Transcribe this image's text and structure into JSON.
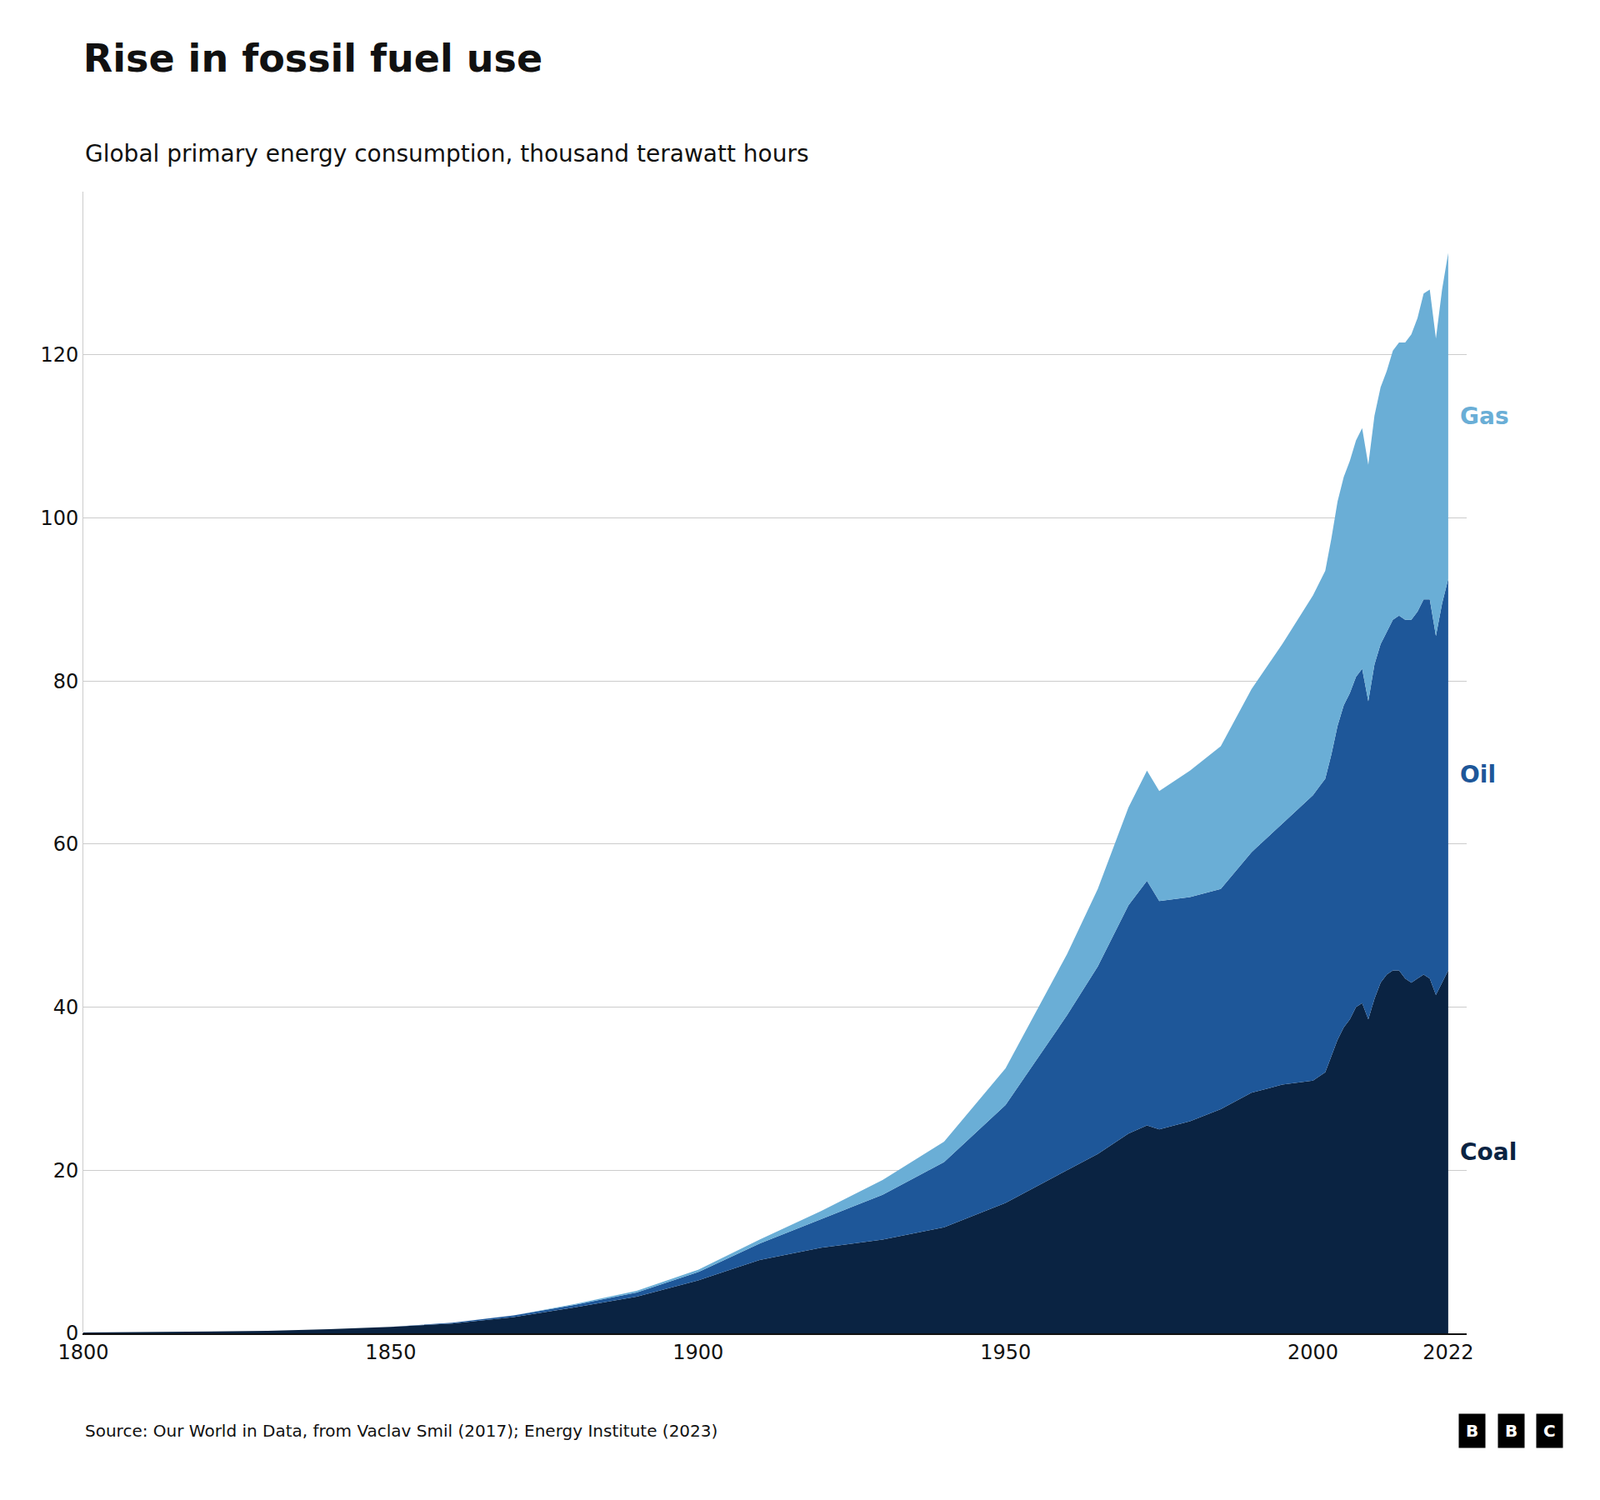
{
  "chart_data": {
    "type": "area",
    "stacked": true,
    "title": "Rise in fossil fuel use",
    "subtitle": "Global primary energy consumption, thousand terawatt hours",
    "source": "Source: Our World in Data, from Vaclav Smil (2017); Energy Institute (2023)",
    "logo": "BBC",
    "x": [
      1800,
      1810,
      1820,
      1830,
      1840,
      1850,
      1860,
      1870,
      1880,
      1890,
      1900,
      1910,
      1920,
      1930,
      1940,
      1950,
      1960,
      1965,
      1970,
      1973,
      1975,
      1980,
      1985,
      1990,
      1995,
      2000,
      2001,
      2002,
      2003,
      2004,
      2005,
      2006,
      2007,
      2008,
      2009,
      2010,
      2011,
      2012,
      2013,
      2014,
      2015,
      2016,
      2017,
      2018,
      2019,
      2020,
      2021,
      2022
    ],
    "series": [
      {
        "name": "Coal",
        "color": "#0a2342",
        "values": [
          0.1,
          0.15,
          0.2,
          0.3,
          0.5,
          0.8,
          1.2,
          2.0,
          3.2,
          4.5,
          6.5,
          9.0,
          10.5,
          11.5,
          13.0,
          16.0,
          20.0,
          22.0,
          24.5,
          25.5,
          25.0,
          26.0,
          27.5,
          29.5,
          30.5,
          31.0,
          31.5,
          32.0,
          34.0,
          36.0,
          37.5,
          38.5,
          40.0,
          40.5,
          38.5,
          41.0,
          43.0,
          44.0,
          44.5,
          44.5,
          43.5,
          43.0,
          43.5,
          44.0,
          43.5,
          41.5,
          43.0,
          44.5
        ]
      },
      {
        "name": "Oil",
        "color": "#1e5799",
        "values": [
          0.0,
          0.0,
          0.0,
          0.0,
          0.0,
          0.0,
          0.1,
          0.2,
          0.3,
          0.5,
          1.0,
          2.0,
          3.5,
          5.5,
          8.0,
          12.0,
          19.0,
          23.0,
          28.0,
          30.0,
          28.0,
          27.5,
          27.0,
          29.5,
          32.0,
          35.0,
          35.5,
          36.0,
          37.0,
          38.5,
          39.5,
          40.0,
          40.5,
          41.0,
          39.0,
          41.0,
          41.5,
          42.0,
          43.0,
          43.5,
          44.0,
          44.5,
          45.0,
          46.0,
          46.5,
          44.0,
          46.5,
          48.0
        ]
      },
      {
        "name": "Gas",
        "color": "#6aaed6",
        "values": [
          0.0,
          0.0,
          0.0,
          0.0,
          0.0,
          0.0,
          0.0,
          0.0,
          0.1,
          0.2,
          0.3,
          0.5,
          1.0,
          1.8,
          2.5,
          4.5,
          7.5,
          9.5,
          12.0,
          13.5,
          13.5,
          15.5,
          17.5,
          20.0,
          22.0,
          24.5,
          25.0,
          25.5,
          26.5,
          27.5,
          28.0,
          28.5,
          29.0,
          29.5,
          29.0,
          30.5,
          31.5,
          32.0,
          33.0,
          33.5,
          34.0,
          35.0,
          36.0,
          37.5,
          38.0,
          36.5,
          38.5,
          40.0
        ]
      }
    ],
    "xlim": [
      1800,
      2025
    ],
    "xticks": [
      1800,
      1850,
      1900,
      1950,
      2000,
      2022
    ],
    "ylim": [
      0,
      140
    ],
    "yticks": [
      0,
      20,
      40,
      60,
      80,
      100,
      120
    ],
    "grid": true
  }
}
